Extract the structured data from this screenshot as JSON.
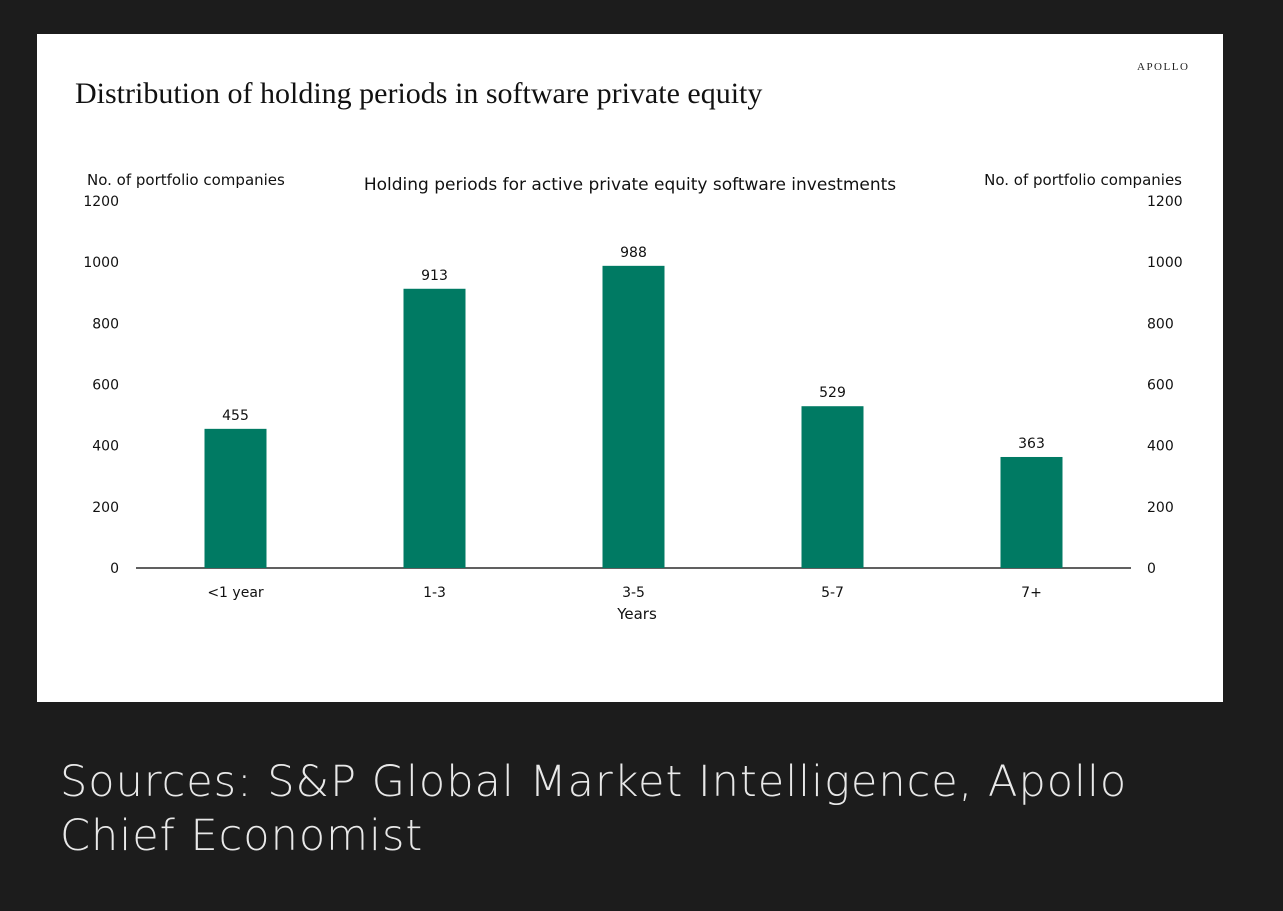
{
  "card": {
    "brand": "APOLLO",
    "title": "Distribution of  holding periods in software private equity"
  },
  "chart_data": {
    "type": "bar",
    "subtitle": "Holding periods for active private equity software investments",
    "xlabel": "Years",
    "ylabel_left": "No. of portfolio companies",
    "ylabel_right": "No. of portfolio companies",
    "categories": [
      "<1 year",
      "1-3",
      "3-5",
      "5-7",
      "7+"
    ],
    "values": [
      455,
      913,
      988,
      529,
      363
    ],
    "data_labels": [
      "455",
      "913",
      "988",
      "529",
      "363"
    ],
    "ylim": [
      0,
      1200
    ],
    "yticks": [
      "0",
      "200",
      "400",
      "600",
      "800",
      "1000",
      "1200"
    ],
    "grid": false,
    "bar_color": "#007a63"
  },
  "footer": {
    "sources": "Sources: S&P Global Market Intelligence, Apollo Chief Economist"
  }
}
